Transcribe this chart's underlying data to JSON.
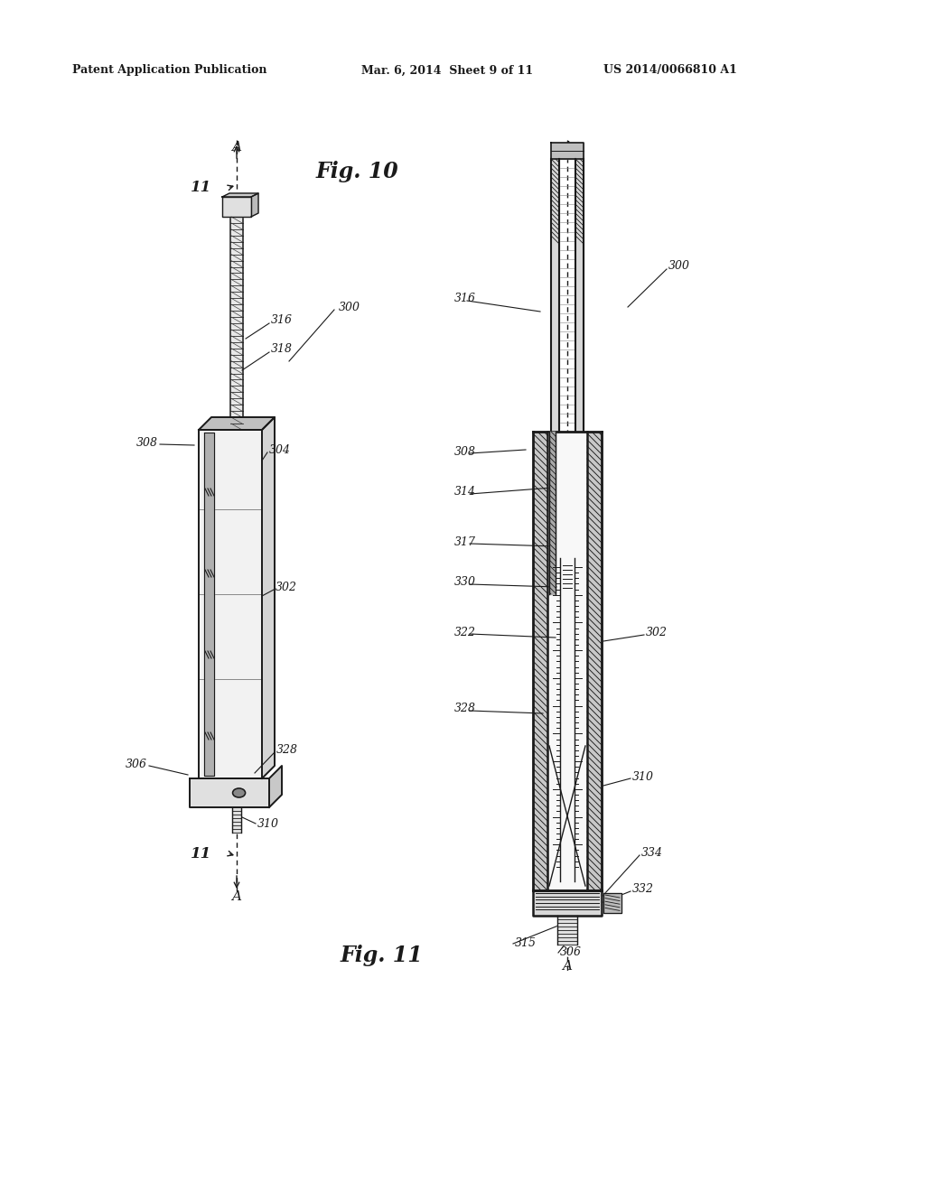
{
  "bg_color": "#ffffff",
  "header_left": "Patent Application Publication",
  "header_mid": "Mar. 6, 2014  Sheet 9 of 11",
  "header_right": "US 2014/0066810 A1",
  "fig10_title": "Fig. 10",
  "fig11_title": "Fig. 11",
  "line_color": "#1a1a1a",
  "label_color": "#1a1a1a"
}
